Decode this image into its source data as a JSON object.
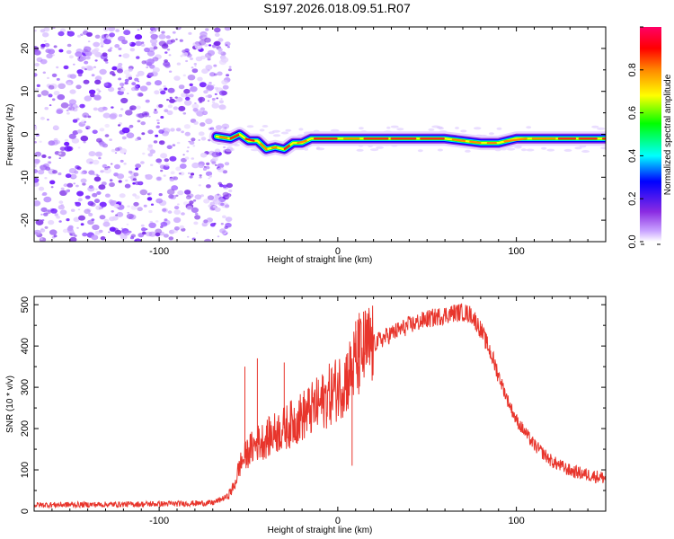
{
  "title": "S197.2026.018.09.51.R07",
  "chart_data": [
    {
      "type": "heatmap",
      "xlabel": "Height of straight line (km)",
      "ylabel": "Frequency (Hz)",
      "xlim": [
        -170,
        150
      ],
      "ylim": [
        -25,
        25
      ],
      "xticks": [
        -100,
        0,
        100
      ],
      "yticks": [
        -20,
        -10,
        0,
        10,
        20
      ],
      "noise_region_x": [
        -170,
        -65
      ],
      "ridge": {
        "x": [
          -68,
          -60,
          -55,
          -50,
          -45,
          -40,
          -35,
          -30,
          -25,
          -20,
          -15,
          -10,
          0,
          10,
          20,
          40,
          60,
          70,
          80,
          90,
          100,
          120,
          150
        ],
        "freq": [
          -0.5,
          -1.0,
          0.0,
          -1.5,
          -1.5,
          -3.5,
          -3.0,
          -3.5,
          -2.0,
          -2.0,
          -1.0,
          -1.0,
          -1.0,
          -1.0,
          -1.0,
          -1.0,
          -1.0,
          -1.5,
          -2.0,
          -2.0,
          -1.0,
          -1.0,
          -1.0
        ]
      },
      "colorbar": {
        "label": "Normalized spectral amplitude",
        "ticks": [
          "0.0",
          "0.2",
          "0.4",
          "0.6",
          "0.8"
        ],
        "range": [
          0,
          1
        ],
        "colors": [
          "#ffffff",
          "#8a2be2",
          "#0000ff",
          "#00ffff",
          "#00ff00",
          "#ffff00",
          "#ff8800",
          "#ff0000",
          "#ff0066"
        ]
      }
    },
    {
      "type": "line",
      "xlabel": "Height of straight line (km)",
      "ylabel": "SNR (10 * v/v)",
      "xlim": [
        -170,
        150
      ],
      "ylim": [
        0,
        520
      ],
      "xticks": [
        -100,
        0,
        100
      ],
      "yticks": [
        0,
        100,
        200,
        300,
        400,
        500
      ],
      "color": "#e8352c",
      "envelope": {
        "x": [
          -170,
          -130,
          -90,
          -70,
          -62,
          -58,
          -55,
          -50,
          -45,
          -40,
          -35,
          -30,
          -25,
          -20,
          -15,
          -10,
          -5,
          0,
          5,
          10,
          15,
          20,
          30,
          40,
          50,
          60,
          65,
          70,
          75,
          80,
          85,
          90,
          95,
          100,
          110,
          120,
          130,
          140,
          150
        ],
        "y": [
          15,
          16,
          18,
          20,
          35,
          60,
          110,
          145,
          165,
          175,
          190,
          200,
          215,
          230,
          245,
          260,
          280,
          300,
          320,
          360,
          390,
          405,
          430,
          450,
          465,
          475,
          480,
          482,
          475,
          440,
          390,
          330,
          270,
          220,
          160,
          120,
          98,
          88,
          80
        ]
      },
      "spikes": [
        {
          "x": -52,
          "y": 350
        },
        {
          "x": -45,
          "y": 370
        },
        {
          "x": -30,
          "y": 360
        },
        {
          "x": 5,
          "y": 380
        },
        {
          "x": 10,
          "y": 460
        },
        {
          "x": 12,
          "y": 480
        },
        {
          "x": 8,
          "y": 110
        }
      ]
    }
  ]
}
